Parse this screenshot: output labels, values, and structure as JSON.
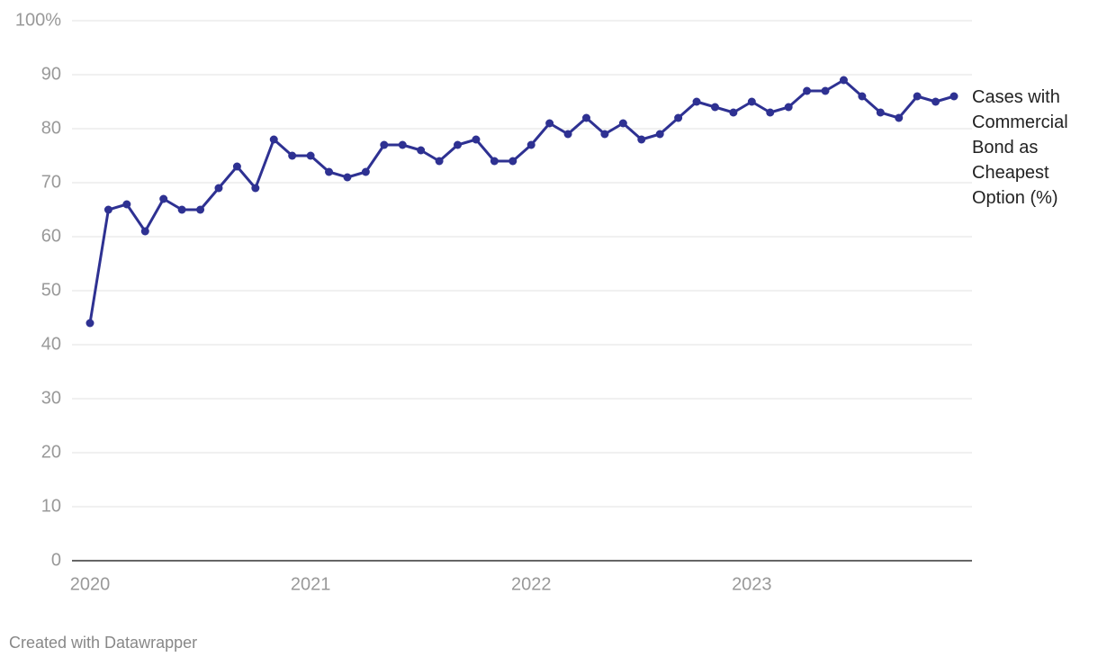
{
  "chart_data": {
    "type": "line",
    "categories": [
      "2020",
      null,
      null,
      null,
      null,
      null,
      null,
      null,
      null,
      null,
      null,
      null,
      "2021",
      null,
      null,
      null,
      null,
      null,
      null,
      null,
      null,
      null,
      null,
      null,
      "2022",
      null,
      null,
      null,
      null,
      null,
      null,
      null,
      null,
      null,
      null,
      null,
      "2023",
      null,
      null,
      null,
      null,
      null,
      null,
      null,
      null,
      null,
      null,
      null
    ],
    "series": [
      {
        "name": "Cases with Commercial Bond as Cheapest Option (%)",
        "color": "#2e3192",
        "values": [
          44,
          65,
          66,
          61,
          67,
          65,
          65,
          69,
          73,
          69,
          78,
          75,
          75,
          72,
          71,
          72,
          77,
          77,
          76,
          74,
          77,
          78,
          74,
          74,
          77,
          81,
          79,
          82,
          79,
          81,
          78,
          79,
          82,
          85,
          84,
          83,
          85,
          83,
          84,
          87,
          87,
          89,
          86,
          83,
          82,
          86,
          85,
          86
        ]
      }
    ],
    "ylim": [
      0,
      100
    ],
    "yticks": [
      0,
      10,
      20,
      30,
      40,
      50,
      60,
      70,
      80,
      90,
      {
        "value": 100,
        "label": "100%"
      }
    ],
    "grid": true,
    "footer": "Created with Datawrapper"
  }
}
